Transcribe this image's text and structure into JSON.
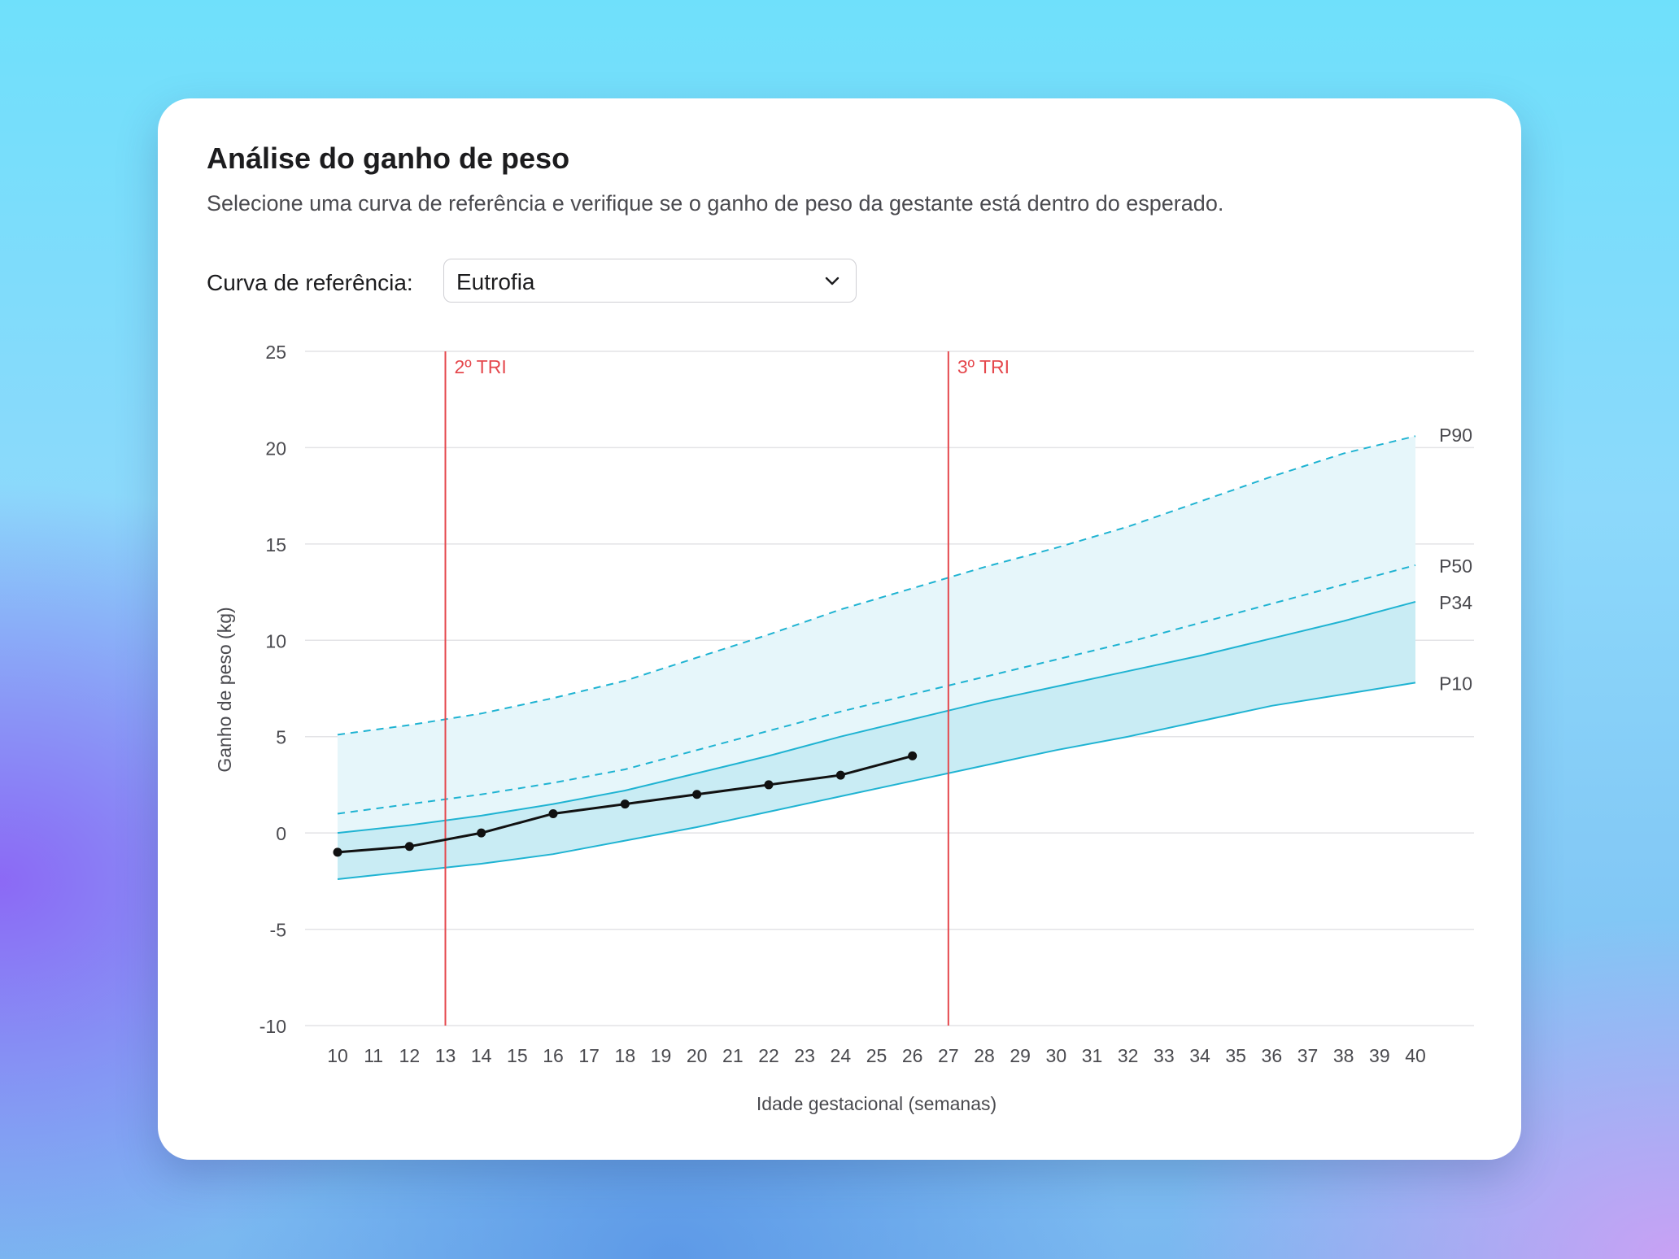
{
  "card": {
    "title": "Análise do ganho de peso",
    "subtitle": "Selecione uma curva de referência e verifique se o ganho de peso da gestante está dentro do esperado.",
    "reference_label": "Curva de referência:",
    "reference_value": "Eutrofia",
    "chevron_icon": "chevron-down-icon"
  },
  "chart_data": {
    "type": "line",
    "xlabel": "Idade gestacional (semanas)",
    "ylabel": "Ganho de peso (kg)",
    "xlim": [
      10,
      40
    ],
    "ylim": [
      -10,
      25
    ],
    "x_ticks": [
      10,
      11,
      12,
      13,
      14,
      15,
      16,
      17,
      18,
      19,
      20,
      21,
      22,
      23,
      24,
      25,
      26,
      27,
      28,
      29,
      30,
      31,
      32,
      33,
      34,
      35,
      36,
      37,
      38,
      39,
      40
    ],
    "y_ticks": [
      25,
      20,
      15,
      10,
      5,
      0,
      -5,
      -10
    ],
    "grid": true,
    "x": [
      10,
      12,
      14,
      16,
      18,
      20,
      22,
      24,
      26,
      28,
      30,
      32,
      34,
      36,
      38,
      40
    ],
    "series": [
      {
        "name": "P90",
        "style": "dashed",
        "color": "#1fb3d2",
        "values": [
          5.1,
          5.6,
          6.2,
          7.0,
          7.9,
          9.1,
          10.3,
          11.6,
          12.7,
          13.8,
          14.8,
          15.9,
          17.2,
          18.5,
          19.7,
          20.6
        ]
      },
      {
        "name": "P50",
        "style": "dashed",
        "color": "#1fb3d2",
        "values": [
          1.0,
          1.5,
          2.0,
          2.6,
          3.3,
          4.3,
          5.3,
          6.3,
          7.2,
          8.1,
          9.0,
          9.9,
          10.9,
          11.9,
          12.9,
          13.9
        ]
      },
      {
        "name": "P34",
        "style": "solid",
        "color": "#1fb3d2",
        "values": [
          0.0,
          0.4,
          0.9,
          1.5,
          2.2,
          3.1,
          4.0,
          5.0,
          5.9,
          6.8,
          7.6,
          8.4,
          9.2,
          10.1,
          11.0,
          12.0
        ]
      },
      {
        "name": "P10",
        "style": "solid",
        "color": "#1fb3d2",
        "values": [
          -2.4,
          -2.0,
          -1.6,
          -1.1,
          -0.4,
          0.3,
          1.1,
          1.9,
          2.7,
          3.5,
          4.3,
          5.0,
          5.8,
          6.6,
          7.2,
          7.8
        ]
      }
    ],
    "patient": {
      "color": "#111111",
      "x": [
        10,
        12,
        14,
        16,
        18,
        20,
        22,
        24,
        26
      ],
      "values": [
        -1.0,
        -0.7,
        0.0,
        1.0,
        1.5,
        2.0,
        2.5,
        3.0,
        4.0
      ]
    },
    "trimester_markers": [
      {
        "x": 13,
        "label": "2º TRI"
      },
      {
        "x": 27,
        "label": "3º TRI"
      }
    ],
    "colors": {
      "band_outer": "#e6f6fa",
      "band_inner": "#c9ecf4",
      "percentile_line": "#1fb3d2",
      "trimester": "#e5484d",
      "grid": "#e3e3e6",
      "axis_text": "#4a4a4f"
    }
  }
}
